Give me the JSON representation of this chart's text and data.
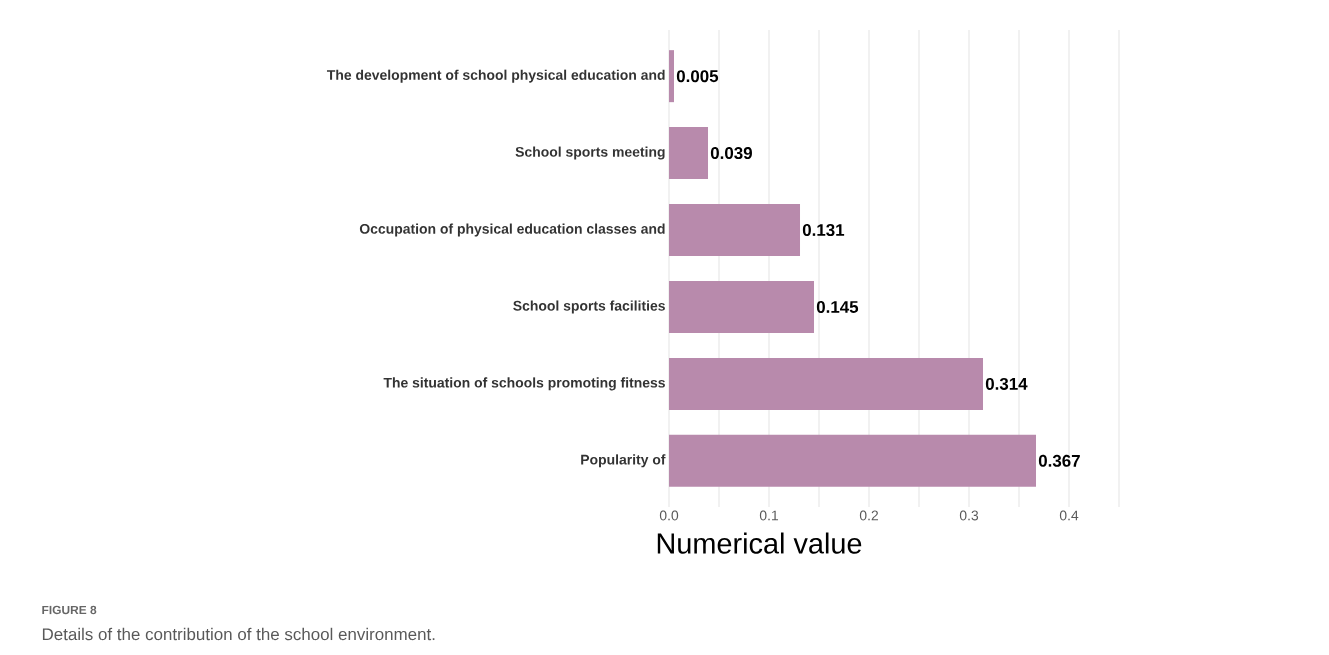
{
  "chart_data": {
    "type": "bar",
    "orientation": "horizontal",
    "categories": [
      "The development of school physical education and",
      "School sports meeting",
      "Occupation of physical education classes and",
      "School sports facilities",
      "The situation of schools promoting fitness",
      "Popularity of"
    ],
    "values": [
      0.005,
      0.039,
      0.131,
      0.145,
      0.314,
      0.367
    ],
    "value_labels": [
      "0.005",
      "0.039",
      "0.131",
      "0.145",
      "0.314",
      "0.367"
    ],
    "color": "#b88aac",
    "xlabel": "Numerical value",
    "xlim": [
      0,
      0.45
    ],
    "xticks": [
      "0.0",
      {
        "value": 0.05,
        "label": null
      },
      "0.1",
      {
        "value": 0.15,
        "label": null
      },
      "0.2",
      {
        "value": 0.25,
        "label": null
      },
      "0.3",
      {
        "value": 0.35,
        "label": null
      },
      "0.4",
      {
        "value": 0.45,
        "label": null
      }
    ],
    "grid": "x",
    "annotations": [
      "FIGURE 8",
      "Details of the contribution of the school environment."
    ]
  }
}
